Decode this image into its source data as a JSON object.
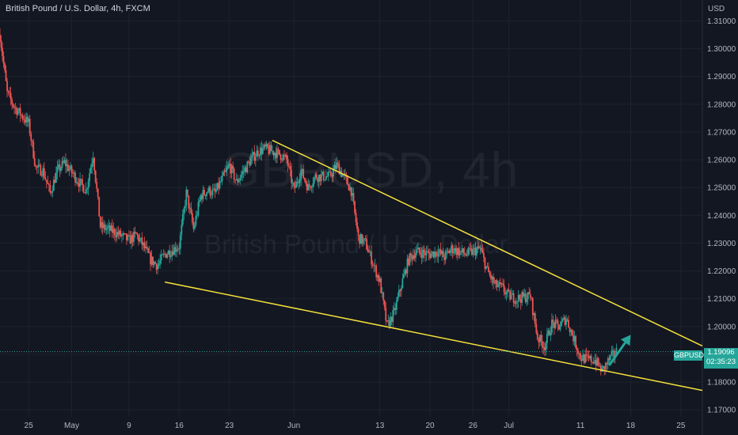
{
  "header": {
    "title": "British Pound / U.S. Dollar, 4h, FXCM",
    "currency": "USD"
  },
  "watermark": {
    "symbol": "GBPUSD, 4h",
    "name": "British Pound / U.S. Dollar"
  },
  "price_tag": {
    "symbol": "GBPUSD",
    "price": "1.19096",
    "countdown": "02:35:23"
  },
  "colors": {
    "background": "#131722",
    "up": "#26a69a",
    "down": "#ef5350",
    "trendline": "#f5e13a",
    "arrow": "#26a69a",
    "grid": "#1e222d"
  },
  "chart_data": {
    "type": "candlestick",
    "symbol": "GBPUSD",
    "timeframe": "4h",
    "y_ticks": [
      "1.31000",
      "1.30000",
      "1.29000",
      "1.28000",
      "1.27000",
      "1.26000",
      "1.25000",
      "1.24000",
      "1.23000",
      "1.22000",
      "1.21000",
      "1.20000",
      "1.19000",
      "1.18000",
      "1.17000"
    ],
    "ylim": [
      1.1675,
      1.3175
    ],
    "x_ticks": [
      "25",
      "May",
      "9",
      "16",
      "23",
      "Jun",
      "13",
      "20",
      "26",
      "Jul",
      "11",
      "18",
      "25"
    ],
    "x_tick_dates": [
      "2022-04-25",
      "2022-05-01",
      "2022-05-09",
      "2022-05-16",
      "2022-05-23",
      "2022-06-01",
      "2022-06-13",
      "2022-06-20",
      "2022-06-26",
      "2022-07-01",
      "2022-07-11",
      "2022-07-18",
      "2022-07-25"
    ],
    "xlim": [
      "2022-04-21",
      "2022-07-28"
    ],
    "grid": true,
    "last_price": 1.19096,
    "close_path": [
      [
        "2022-04-21",
        1.305
      ],
      [
        "2022-04-22",
        1.284
      ],
      [
        "2022-04-23",
        1.279
      ],
      [
        "2022-04-25",
        1.273
      ],
      [
        "2022-04-26",
        1.257
      ],
      [
        "2022-04-27",
        1.256
      ],
      [
        "2022-04-28",
        1.248
      ],
      [
        "2022-04-29",
        1.256
      ],
      [
        "2022-04-30",
        1.259
      ],
      [
        "2022-05-02",
        1.252
      ],
      [
        "2022-05-03",
        1.249
      ],
      [
        "2022-05-04",
        1.262
      ],
      [
        "2022-05-05",
        1.236
      ],
      [
        "2022-05-06",
        1.235
      ],
      [
        "2022-05-07",
        1.234
      ],
      [
        "2022-05-09",
        1.231
      ],
      [
        "2022-05-10",
        1.233
      ],
      [
        "2022-05-11",
        1.229
      ],
      [
        "2022-05-12",
        1.224
      ],
      [
        "2022-05-13",
        1.222
      ],
      [
        "2022-05-14",
        1.226
      ],
      [
        "2022-05-16",
        1.229
      ],
      [
        "2022-05-17",
        1.248
      ],
      [
        "2022-05-18",
        1.235
      ],
      [
        "2022-05-19",
        1.247
      ],
      [
        "2022-05-20",
        1.249
      ],
      [
        "2022-05-21",
        1.248
      ],
      [
        "2022-05-23",
        1.258
      ],
      [
        "2022-05-24",
        1.252
      ],
      [
        "2022-05-25",
        1.256
      ],
      [
        "2022-05-26",
        1.26
      ],
      [
        "2022-05-27",
        1.263
      ],
      [
        "2022-05-28",
        1.264
      ],
      [
        "2022-05-30",
        1.262
      ],
      [
        "2022-05-31",
        1.26
      ],
      [
        "2022-06-01",
        1.249
      ],
      [
        "2022-06-02",
        1.256
      ],
      [
        "2022-06-03",
        1.25
      ],
      [
        "2022-06-04",
        1.254
      ],
      [
        "2022-06-06",
        1.254
      ],
      [
        "2022-06-07",
        1.258
      ],
      [
        "2022-06-08",
        1.254
      ],
      [
        "2022-06-09",
        1.249
      ],
      [
        "2022-06-10",
        1.232
      ],
      [
        "2022-06-11",
        1.23
      ],
      [
        "2022-06-13",
        1.216
      ],
      [
        "2022-06-14",
        1.2
      ],
      [
        "2022-06-15",
        1.205
      ],
      [
        "2022-06-16",
        1.215
      ],
      [
        "2022-06-17",
        1.224
      ],
      [
        "2022-06-18",
        1.227
      ],
      [
        "2022-06-20",
        1.226
      ],
      [
        "2022-06-21",
        1.227
      ],
      [
        "2022-06-22",
        1.225
      ],
      [
        "2022-06-23",
        1.228
      ],
      [
        "2022-06-24",
        1.227
      ],
      [
        "2022-06-25",
        1.226
      ],
      [
        "2022-06-27",
        1.228
      ],
      [
        "2022-06-28",
        1.22
      ],
      [
        "2022-06-29",
        1.215
      ],
      [
        "2022-06-30",
        1.214
      ],
      [
        "2022-07-01",
        1.211
      ],
      [
        "2022-07-02",
        1.21
      ],
      [
        "2022-07-04",
        1.211
      ],
      [
        "2022-07-05",
        1.196
      ],
      [
        "2022-07-06",
        1.193
      ],
      [
        "2022-07-07",
        1.201
      ],
      [
        "2022-07-08",
        1.2
      ],
      [
        "2022-07-09",
        1.203
      ],
      [
        "2022-07-11",
        1.189
      ],
      [
        "2022-07-12",
        1.188
      ],
      [
        "2022-07-13",
        1.188
      ],
      [
        "2022-07-14",
        1.184
      ],
      [
        "2022-07-15",
        1.188
      ],
      [
        "2022-07-16",
        1.191
      ]
    ],
    "trendlines": [
      {
        "from": [
          "2022-05-14",
          1.216
        ],
        "to": [
          "2022-07-28",
          1.177
        ]
      },
      {
        "from": [
          "2022-05-29",
          1.267
        ],
        "to": [
          "2022-07-28",
          1.193
        ]
      }
    ],
    "arrow": {
      "from": [
        "2022-07-15",
        1.186
      ],
      "to": [
        "2022-07-18",
        1.197
      ]
    }
  }
}
